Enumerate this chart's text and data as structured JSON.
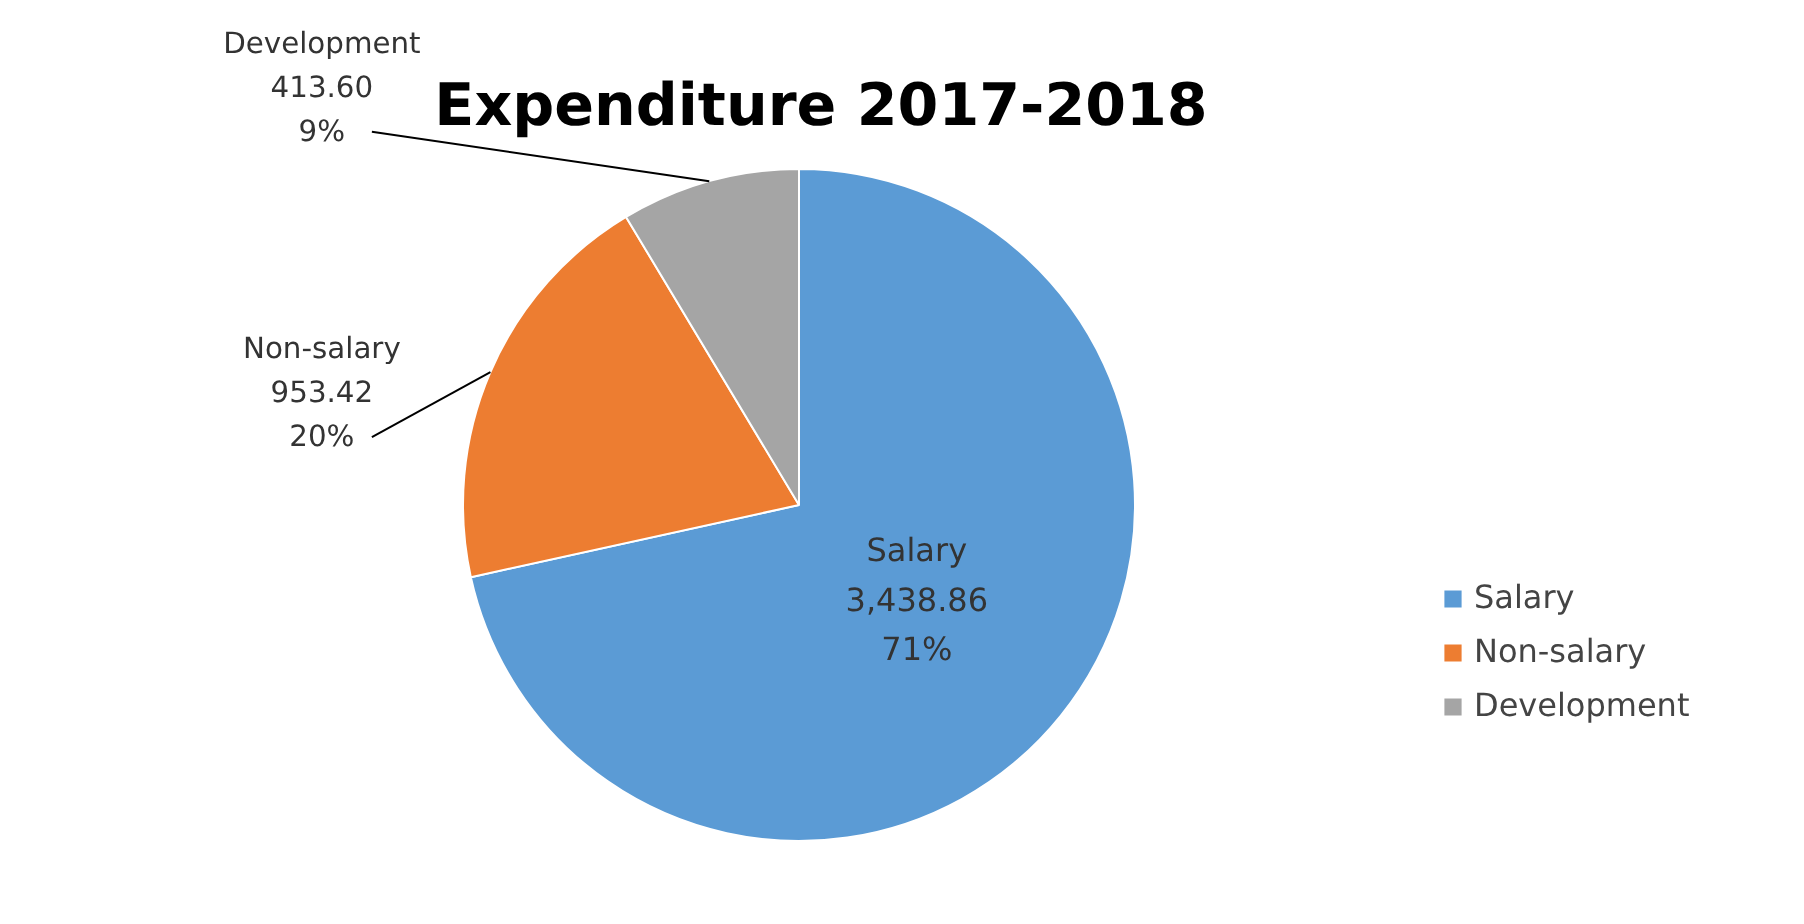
{
  "chart_data": {
    "type": "pie",
    "title": "Expenditure 2017-2018",
    "categories": [
      "Salary",
      "Non-salary",
      "Development"
    ],
    "values": [
      3438.86,
      953.42,
      413.6
    ],
    "value_labels": [
      "3,438.86\n71%",
      "953.42\n20%",
      "413.60\n9%"
    ],
    "colors": [
      "#5b9bd5",
      "#ed7d31",
      "#a5a5a5"
    ],
    "legend": "right"
  }
}
